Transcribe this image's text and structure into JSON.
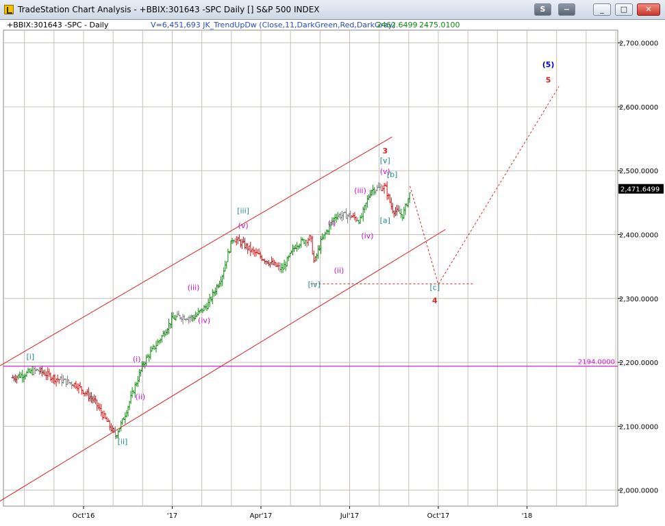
{
  "window": {
    "title": "TradeStation Chart Analysis - +BBIX:301643 -SPC Daily [] S&P 500 INDEX",
    "buttons": {
      "s_label": "S",
      "minus_label": "−",
      "min_label": "_",
      "max_label": "□",
      "close_label": "✕"
    }
  },
  "header": {
    "symbol": "+BBIX:301643 -SPC - Daily",
    "indicator": "V=6,451,693  JK_TrendUpDw  (Close,11,DarkGreen,Red,DarkGray)",
    "value1": "2462.6499",
    "value2": "2475.0100"
  },
  "colors": {
    "up": "#0a8a0a",
    "down": "#d01010",
    "neutral": "#7a7a7a",
    "channel": "#e02020",
    "magenta": "#d010d0",
    "teal": "#1a8c8c",
    "blue": "#0000cc",
    "grid": "#c8c0b8"
  },
  "chart_data": {
    "type": "ohlc",
    "x_tick_labels": [
      "Oct'16",
      "'17",
      "Apr'17",
      "Jul'17",
      "Oct'17",
      "'18"
    ],
    "y_tick_labels": [
      "2,000.0000",
      "2,100.0000",
      "2,200.0000",
      "2,300.0000",
      "2,400.0000",
      "2,500.0000",
      "2,600.0000",
      "2,700.0000"
    ],
    "ylim": [
      1975,
      2720
    ],
    "last_price": "2,471.6499",
    "reference_line": {
      "label": "2194.0000",
      "value": 2194
    },
    "price_path": [
      [
        2016.55,
        2176
      ],
      [
        2016.62,
        2188
      ],
      [
        2016.67,
        2175
      ],
      [
        2016.73,
        2165
      ],
      [
        2016.78,
        2140
      ],
      [
        2016.84,
        2085
      ],
      [
        2016.86,
        2108
      ],
      [
        2016.9,
        2170
      ],
      [
        2016.92,
        2200
      ],
      [
        2016.97,
        2240
      ],
      [
        2017.0,
        2268
      ],
      [
        2017.02,
        2272
      ],
      [
        2017.06,
        2270
      ],
      [
        2017.1,
        2290
      ],
      [
        2017.14,
        2335
      ],
      [
        2017.17,
        2395
      ],
      [
        2017.2,
        2385
      ],
      [
        2017.23,
        2372
      ],
      [
        2017.27,
        2358
      ],
      [
        2017.31,
        2345
      ],
      [
        2017.35,
        2385
      ],
      [
        2017.39,
        2395
      ],
      [
        2017.4,
        2355
      ],
      [
        2017.42,
        2390
      ],
      [
        2017.46,
        2430
      ],
      [
        2017.5,
        2430
      ],
      [
        2017.53,
        2422
      ],
      [
        2017.56,
        2470
      ],
      [
        2017.6,
        2475
      ],
      [
        2017.62,
        2440
      ],
      [
        2017.65,
        2430
      ],
      [
        2017.67,
        2465
      ]
    ],
    "wave_labels": [
      {
        "text": "[i]",
        "x": 2016.6,
        "y": 2205,
        "color": "teal"
      },
      {
        "text": "[ii]",
        "x": 2016.86,
        "y": 2072,
        "color": "teal"
      },
      {
        "text": "[iii]",
        "x": 2017.2,
        "y": 2433,
        "color": "teal"
      },
      {
        "text": "[iv]",
        "x": 2017.4,
        "y": 2318,
        "color": "teal"
      },
      {
        "text": "[v]",
        "x": 2017.6,
        "y": 2512,
        "color": "teal"
      },
      {
        "text": "[a]",
        "x": 2017.6,
        "y": 2418,
        "color": "teal"
      },
      {
        "text": "[b]",
        "x": 2017.62,
        "y": 2490,
        "color": "teal"
      },
      {
        "text": "[c]",
        "x": 2017.74,
        "y": 2313,
        "color": "teal"
      },
      {
        "text": "(i)",
        "x": 2016.9,
        "y": 2201,
        "color": "magenta"
      },
      {
        "text": "(ii)",
        "x": 2016.91,
        "y": 2142,
        "color": "magenta"
      },
      {
        "text": "(iii)",
        "x": 2017.06,
        "y": 2313,
        "color": "magenta"
      },
      {
        "text": "(iv)",
        "x": 2017.09,
        "y": 2262,
        "color": "magenta"
      },
      {
        "text": "(v)",
        "x": 2017.2,
        "y": 2410,
        "color": "magenta"
      },
      {
        "text": "(i)",
        "x": 2017.45,
        "y": 2414,
        "color": "magenta"
      },
      {
        "text": "(ii)",
        "x": 2017.47,
        "y": 2340,
        "color": "magenta"
      },
      {
        "text": "(iii)",
        "x": 2017.53,
        "y": 2465,
        "color": "magenta"
      },
      {
        "text": "(iv)",
        "x": 2017.55,
        "y": 2394,
        "color": "magenta"
      },
      {
        "text": "(v)",
        "x": 2017.6,
        "y": 2495,
        "color": "magenta"
      },
      {
        "text": "3",
        "x": 2017.6,
        "y": 2527,
        "color": "red"
      },
      {
        "text": "4",
        "x": 2017.74,
        "y": 2293,
        "color": "red"
      },
      {
        "text": "5",
        "x": 2018.06,
        "y": 2638,
        "color": "red"
      },
      {
        "text": "(5)",
        "x": 2018.06,
        "y": 2662,
        "color": "blue"
      }
    ],
    "channel_lines": [
      {
        "from": [
          2016.5,
          2190
        ],
        "to": [
          2017.62,
          2553
        ]
      },
      {
        "from": [
          2016.5,
          1978
        ],
        "to": [
          2017.77,
          2408
        ]
      }
    ],
    "projection_path": [
      [
        2017.67,
        2476
      ],
      [
        2017.75,
        2322
      ],
      [
        2018.09,
        2632
      ]
    ],
    "support_level": {
      "from": [
        2017.39,
        2323
      ],
      "to": [
        2017.85,
        2323
      ]
    }
  }
}
